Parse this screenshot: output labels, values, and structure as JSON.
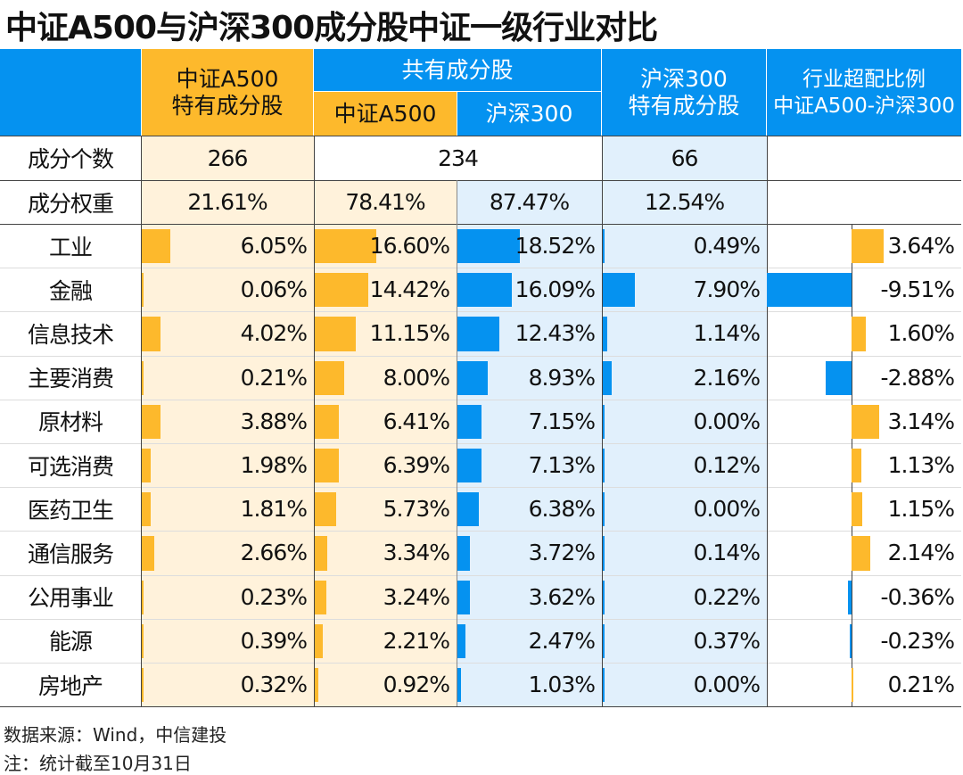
{
  "title": "中证A500与沪深300成分股中证一级行业对比",
  "headers": {
    "col1": "中证A500\n特有成分股",
    "shared": "共有成分股",
    "shared_a500": "中证A500",
    "shared_hs300": "沪深300",
    "col4": "沪深300\n特有成分股",
    "col5": "行业超配比例\n中证A500-沪深300"
  },
  "summary": {
    "count_label": "成分个数",
    "count_a500_only": "266",
    "count_shared": "234",
    "count_hs300_only": "66",
    "weight_label": "成分权重",
    "weight_a500_only": "21.61%",
    "weight_shared_a500": "78.41%",
    "weight_shared_hs300": "87.47%",
    "weight_hs300_only": "12.54%"
  },
  "colors": {
    "yellow": "#FDB92C",
    "blue": "#0592F0",
    "cream": "#FFF2DB",
    "lightblue": "#E1F0FC"
  },
  "chart_data": {
    "type": "table",
    "columns": [
      "中证A500特有成分股",
      "共有成分股-中证A500",
      "共有成分股-沪深300",
      "沪深300特有成分股",
      "行业超配比例 中证A500-沪深300"
    ],
    "rows": [
      {
        "industry": "工业",
        "values": [
          "6.05%",
          "16.60%",
          "18.52%",
          "0.49%",
          "3.64%"
        ]
      },
      {
        "industry": "金融",
        "values": [
          "0.06%",
          "14.42%",
          "16.09%",
          "7.90%",
          "-9.51%"
        ]
      },
      {
        "industry": "信息技术",
        "values": [
          "4.02%",
          "11.15%",
          "12.43%",
          "1.14%",
          "1.60%"
        ]
      },
      {
        "industry": "主要消费",
        "values": [
          "0.21%",
          "8.00%",
          "8.93%",
          "2.16%",
          "-2.88%"
        ]
      },
      {
        "industry": "原材料",
        "values": [
          "3.88%",
          "6.41%",
          "7.15%",
          "0.00%",
          "3.14%"
        ]
      },
      {
        "industry": "可选消费",
        "values": [
          "1.98%",
          "6.39%",
          "7.13%",
          "0.12%",
          "1.13%"
        ]
      },
      {
        "industry": "医药卫生",
        "values": [
          "1.81%",
          "5.73%",
          "6.38%",
          "0.00%",
          "1.15%"
        ]
      },
      {
        "industry": "通信服务",
        "values": [
          "2.66%",
          "3.34%",
          "3.72%",
          "0.14%",
          "2.14%"
        ]
      },
      {
        "industry": "公用事业",
        "values": [
          "0.23%",
          "3.24%",
          "3.62%",
          "0.22%",
          "-0.36%"
        ]
      },
      {
        "industry": "能源",
        "values": [
          "0.39%",
          "2.21%",
          "2.47%",
          "0.37%",
          "-0.23%"
        ]
      },
      {
        "industry": "房地产",
        "values": [
          "0.32%",
          "0.92%",
          "1.03%",
          "0.00%",
          "0.21%"
        ]
      }
    ]
  },
  "footer": {
    "source": "数据来源：Wind，中信建投",
    "note": "注：统计截至10月31日"
  }
}
